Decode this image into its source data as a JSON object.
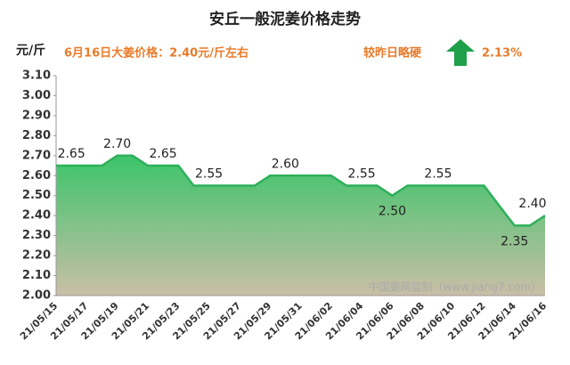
{
  "chart_data": {
    "type": "area",
    "title": "安丘一般泥姜价格走势",
    "y_unit": "元/斤",
    "subtitle": "6月16日大姜价格：2.40元/斤左右",
    "change_text": "较昨日略硬",
    "change_value": "2.13%",
    "watermark": "中国姜网监制（www.jiang7.com）",
    "categories": [
      "21/05/15",
      null,
      "21/05/17",
      null,
      "21/05/19",
      null,
      "21/05/21",
      null,
      "21/05/23",
      null,
      "21/05/25",
      null,
      "21/05/27",
      null,
      "21/05/29",
      null,
      "21/05/31",
      null,
      "21/06/02",
      null,
      "21/06/04",
      null,
      "21/06/06",
      null,
      "21/06/08",
      null,
      "21/06/10",
      null,
      "21/06/12",
      null,
      "21/06/14",
      null,
      "21/06/16"
    ],
    "values": [
      2.65,
      2.65,
      2.65,
      2.65,
      2.7,
      2.7,
      2.65,
      2.65,
      2.65,
      2.55,
      2.55,
      2.55,
      2.55,
      2.55,
      2.6,
      2.6,
      2.6,
      2.6,
      2.6,
      2.55,
      2.55,
      2.55,
      2.5,
      2.55,
      2.55,
      2.55,
      2.55,
      2.55,
      2.55,
      2.45,
      2.35,
      2.35,
      2.4
    ],
    "value_labels": [
      null,
      "2.65",
      null,
      null,
      "2.70",
      null,
      null,
      "2.65",
      null,
      null,
      "2.55",
      null,
      null,
      null,
      null,
      "2.60",
      null,
      null,
      null,
      null,
      "2.55",
      null,
      "2.50",
      null,
      null,
      "2.55",
      null,
      null,
      null,
      null,
      "2.35",
      null,
      "2.40"
    ],
    "color": "#2db05a",
    "ylim": [
      2.0,
      3.1
    ],
    "yticks": [
      {
        "value": 2.0,
        "label": "2.00"
      },
      {
        "value": 2.1,
        "label": "2.10"
      },
      {
        "value": 2.2,
        "label": "2.20"
      },
      {
        "value": 2.3,
        "label": "2.30"
      },
      {
        "value": 2.4,
        "label": "2.40"
      },
      {
        "value": 2.5,
        "label": "2.50"
      },
      {
        "value": 2.6,
        "label": "2.60"
      },
      {
        "value": 2.7,
        "label": "2.70"
      },
      {
        "value": 2.8,
        "label": "2.80"
      },
      {
        "value": 2.9,
        "label": "2.90"
      },
      {
        "value": 3.0,
        "label": "3.00"
      },
      {
        "value": 3.1,
        "label": "3.10"
      }
    ]
  }
}
